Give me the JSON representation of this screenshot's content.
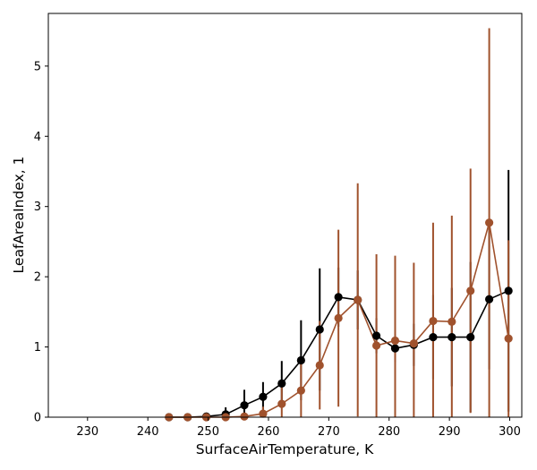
{
  "chart_data": {
    "type": "line",
    "xlabel": "SurfaceAirTemperature,  K",
    "ylabel": "LeafAreaIndex,  1",
    "xlim": [
      223.5,
      302
    ],
    "ylim": [
      0,
      5.75
    ],
    "x_ticks": [
      230,
      240,
      250,
      260,
      270,
      280,
      290,
      300
    ],
    "y_ticks": [
      0,
      1,
      2,
      3,
      4,
      5
    ],
    "grid": false,
    "series": [
      {
        "color": "#000000",
        "marker": "circle",
        "points": [
          {
            "x": 243.5,
            "y": 0.0,
            "err": 0.0
          },
          {
            "x": 246.6,
            "y": 0.0,
            "err": 0.0
          },
          {
            "x": 249.7,
            "y": 0.01,
            "err": 0.02
          },
          {
            "x": 252.9,
            "y": 0.04,
            "err": 0.1
          },
          {
            "x": 256.0,
            "y": 0.17,
            "err": 0.22
          },
          {
            "x": 259.1,
            "y": 0.29,
            "err": 0.21
          },
          {
            "x": 262.2,
            "y": 0.48,
            "err": 0.32
          },
          {
            "x": 265.4,
            "y": 0.81,
            "err": 0.57
          },
          {
            "x": 268.5,
            "y": 1.25,
            "err": 0.87
          },
          {
            "x": 271.6,
            "y": 1.71,
            "err": 0.42
          },
          {
            "x": 274.8,
            "y": 1.67,
            "err": 0.42
          },
          {
            "x": 277.9,
            "y": 1.16,
            "err": 0.25
          },
          {
            "x": 281.0,
            "y": 0.98,
            "err": 0.2
          },
          {
            "x": 284.1,
            "y": 1.03,
            "err": 0.3
          },
          {
            "x": 287.3,
            "y": 1.14,
            "err": 0.6
          },
          {
            "x": 290.4,
            "y": 1.14,
            "err": 0.7
          },
          {
            "x": 293.5,
            "y": 1.14,
            "err": 1.07
          },
          {
            "x": 296.6,
            "y": 1.68,
            "err": 1.0
          },
          {
            "x": 299.8,
            "y": 1.8,
            "err": 1.72
          }
        ]
      },
      {
        "color": "#a0522d",
        "marker": "circle",
        "points": [
          {
            "x": 243.5,
            "y": 0.0,
            "err": 0.0
          },
          {
            "x": 246.6,
            "y": 0.0,
            "err": 0.0
          },
          {
            "x": 249.7,
            "y": 0.0,
            "err": 0.0
          },
          {
            "x": 252.9,
            "y": 0.0,
            "err": 0.02
          },
          {
            "x": 256.0,
            "y": 0.01,
            "err": 0.05
          },
          {
            "x": 259.1,
            "y": 0.05,
            "err": 0.1
          },
          {
            "x": 262.2,
            "y": 0.19,
            "err": 0.27
          },
          {
            "x": 265.4,
            "y": 0.38,
            "err": 0.45
          },
          {
            "x": 268.5,
            "y": 0.74,
            "err": 0.63
          },
          {
            "x": 271.6,
            "y": 1.41,
            "err": 1.26
          },
          {
            "x": 274.8,
            "y": 1.67,
            "err": 1.66
          },
          {
            "x": 277.9,
            "y": 1.02,
            "err": 1.3
          },
          {
            "x": 281.0,
            "y": 1.09,
            "err": 1.21
          },
          {
            "x": 284.1,
            "y": 1.05,
            "err": 1.15
          },
          {
            "x": 287.3,
            "y": 1.37,
            "err": 1.4
          },
          {
            "x": 290.4,
            "y": 1.36,
            "err": 1.51
          },
          {
            "x": 293.5,
            "y": 1.8,
            "err": 1.74
          },
          {
            "x": 296.6,
            "y": 2.77,
            "err": 2.77
          },
          {
            "x": 299.8,
            "y": 1.12,
            "err": 1.4
          }
        ]
      }
    ]
  }
}
